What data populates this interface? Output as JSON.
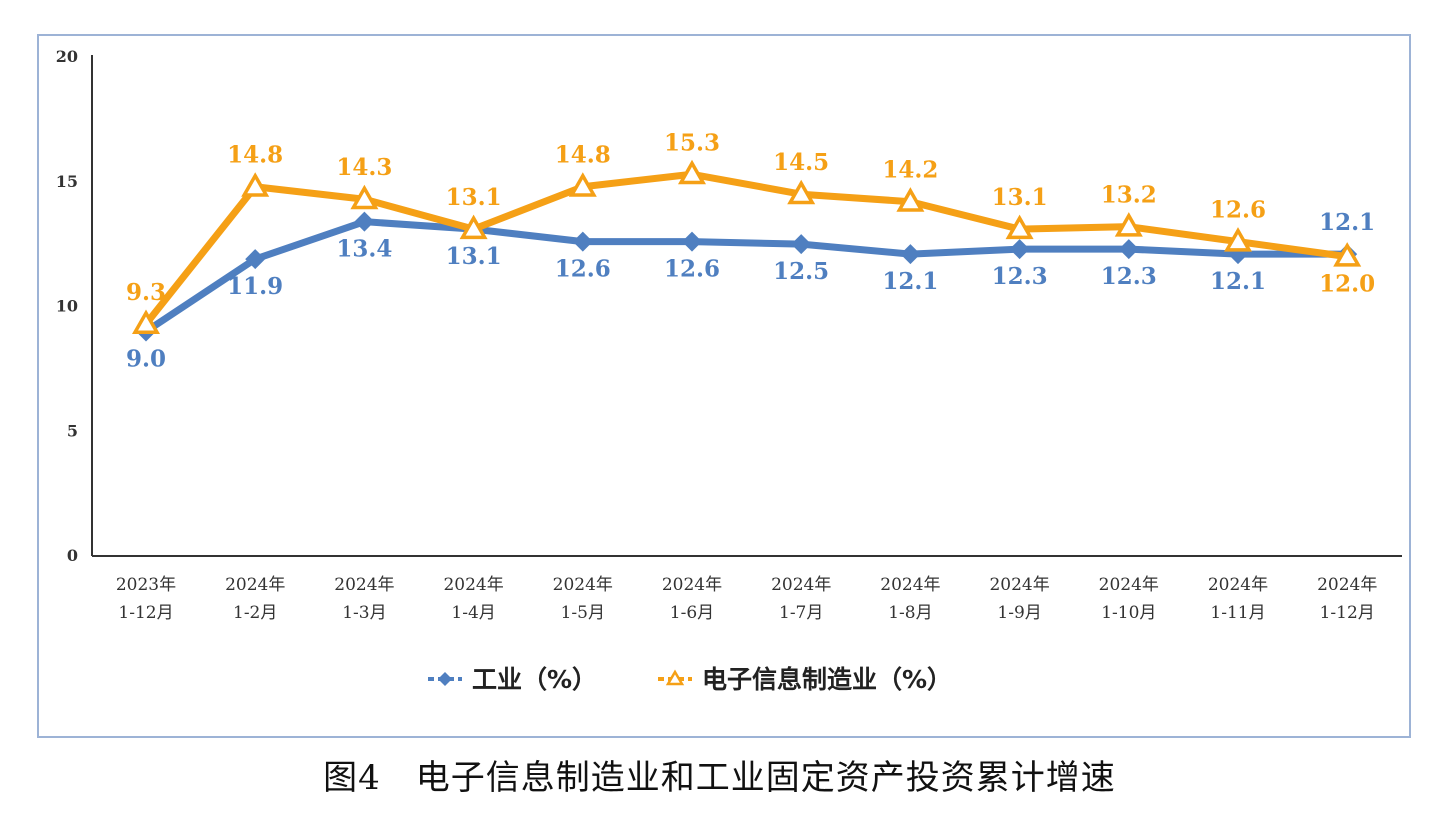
{
  "chart_data": {
    "type": "line",
    "title": "图4　电子信息制造业和工业固定资产投资累计增速",
    "xlabel": "",
    "ylabel": "",
    "ylim": [
      0,
      20
    ],
    "yticks": [
      "0",
      "5",
      "10",
      "15",
      "20"
    ],
    "categories": [
      [
        "2023年",
        "1-12月"
      ],
      [
        "2024年",
        "1-2月"
      ],
      [
        "2024年",
        "1-3月"
      ],
      [
        "2024年",
        "1-4月"
      ],
      [
        "2024年",
        "1-5月"
      ],
      [
        "2024年",
        "1-6月"
      ],
      [
        "2024年",
        "1-7月"
      ],
      [
        "2024年",
        "1-8月"
      ],
      [
        "2024年",
        "1-9月"
      ],
      [
        "2024年",
        "1-10月"
      ],
      [
        "2024年",
        "1-11月"
      ],
      [
        "2024年",
        "1-12月"
      ]
    ],
    "series": [
      {
        "name": "工业（%）",
        "color": "#4f7fc0",
        "marker": "diamond",
        "values": [
          9.0,
          11.9,
          13.4,
          13.1,
          12.6,
          12.6,
          12.5,
          12.1,
          12.3,
          12.3,
          12.1,
          12.1
        ],
        "labels": [
          "9.0",
          "11.9",
          "13.4",
          "13.1",
          "12.6",
          "12.6",
          "12.5",
          "12.1",
          "12.3",
          "12.3",
          "12.1",
          "12.1"
        ]
      },
      {
        "name": "电子信息制造业（%）",
        "color": "#f5a016",
        "marker": "triangle",
        "values": [
          9.3,
          14.8,
          14.3,
          13.1,
          14.8,
          15.3,
          14.5,
          14.2,
          13.1,
          13.2,
          12.6,
          12.0
        ],
        "labels": [
          "9.3",
          "14.8",
          "14.3",
          "13.1",
          "14.8",
          "15.3",
          "14.5",
          "14.2",
          "13.1",
          "13.2",
          "12.6",
          "12.0"
        ]
      }
    ],
    "legend": "bottom"
  }
}
